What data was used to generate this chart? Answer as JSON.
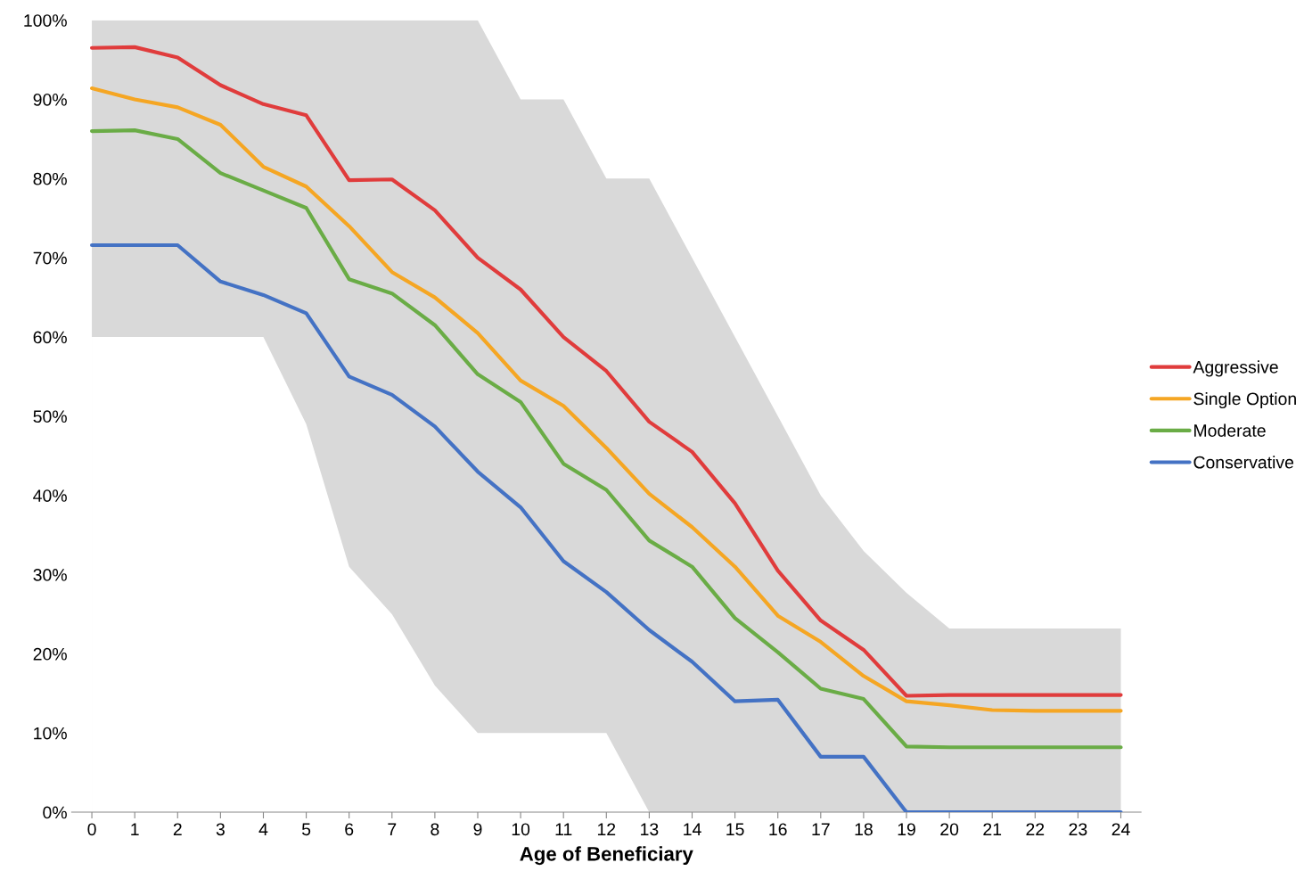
{
  "chart_data": {
    "type": "line",
    "xlabel": "Age of Beneficiary",
    "categories": [
      "0",
      "1",
      "2",
      "3",
      "4",
      "5",
      "6",
      "7",
      "8",
      "9",
      "10",
      "11",
      "12",
      "13",
      "14",
      "15",
      "16",
      "17",
      "18",
      "19",
      "20",
      "21",
      "22",
      "23",
      "24"
    ],
    "ylim": [
      0,
      100
    ],
    "yticks": [
      {
        "value": 0,
        "label": "0%"
      },
      {
        "value": 10,
        "label": "10%"
      },
      {
        "value": 20,
        "label": "20%"
      },
      {
        "value": 30,
        "label": "30%"
      },
      {
        "value": 40,
        "label": "40%"
      },
      {
        "value": 50,
        "label": "50%"
      },
      {
        "value": 60,
        "label": "60%"
      },
      {
        "value": 70,
        "label": "70%"
      },
      {
        "value": 80,
        "label": "80%"
      },
      {
        "value": 90,
        "label": "90%"
      },
      {
        "value": 100,
        "label": "100%"
      }
    ],
    "legend": "right",
    "grid": false,
    "line_style": "solid",
    "series": [
      {
        "type": "area",
        "color": "#d9d9d9",
        "values": [
          100,
          100,
          100,
          100,
          100,
          100,
          100,
          100,
          100,
          100,
          90,
          90,
          80,
          80,
          70,
          60,
          50,
          40,
          33,
          27.7,
          23.2,
          23.2,
          23.2,
          23.2,
          23.2
        ]
      },
      {
        "type": "area",
        "color": "#ffffff",
        "values": [
          60,
          60,
          60,
          60,
          60,
          49,
          31,
          25,
          16,
          10,
          10,
          10,
          10,
          0,
          0,
          0,
          0,
          0,
          0,
          0,
          0,
          0,
          0,
          0,
          0
        ]
      },
      {
        "name": "Aggressive",
        "color": "#e03c3c",
        "values": [
          96.5,
          96.6,
          95.3,
          91.8,
          89.4,
          88,
          79.8,
          79.9,
          76,
          70,
          66,
          60,
          55.7,
          49.3,
          45.5,
          39,
          30.5,
          24.2,
          20.5,
          14.7,
          14.8,
          14.8,
          14.8,
          14.8,
          14.8
        ]
      },
      {
        "name": "Single Option",
        "color": "#f5a623",
        "values": [
          91.4,
          90,
          89,
          86.8,
          81.5,
          79,
          74,
          68.2,
          65,
          60.5,
          54.5,
          51.3,
          46,
          40.2,
          36,
          31,
          24.8,
          21.5,
          17.2,
          14,
          13.5,
          12.9,
          12.8,
          12.8,
          12.8
        ]
      },
      {
        "name": "Moderate",
        "color": "#6aac46",
        "values": [
          86,
          86.1,
          85,
          80.7,
          78.5,
          76.3,
          67.3,
          65.5,
          61.5,
          55.3,
          51.8,
          44,
          40.7,
          34.3,
          31,
          24.5,
          20.2,
          15.6,
          14.3,
          8.3,
          8.2,
          8.2,
          8.2,
          8.2,
          8.2
        ]
      },
      {
        "name": "Conservative",
        "color": "#4472c4",
        "values": [
          71.6,
          71.6,
          71.6,
          67,
          65.3,
          63,
          55,
          52.7,
          48.7,
          43,
          38.5,
          31.7,
          27.8,
          23,
          19,
          14,
          14.2,
          7,
          7,
          0,
          0,
          0,
          0,
          0,
          0
        ]
      }
    ]
  }
}
